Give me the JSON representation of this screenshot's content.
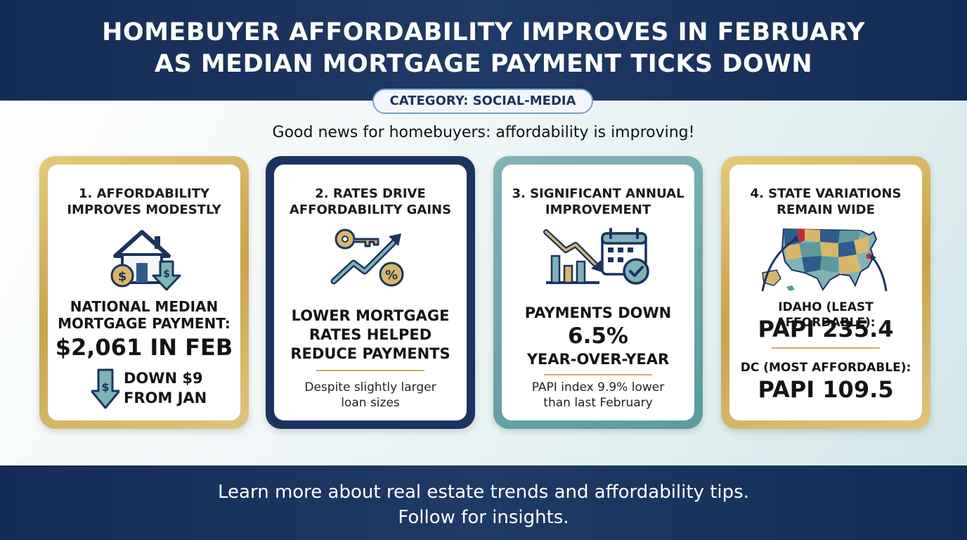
{
  "header": {
    "title_line1": "HOMEBUYER AFFORDABILITY IMPROVES IN FEBRUARY",
    "title_line2": "AS MEDIAN MORTGAGE PAYMENT TICKS DOWN"
  },
  "category": "CATEGORY: SOCIAL-MEDIA",
  "subheadline": "Good news for homebuyers: affordability is improving!",
  "cards": [
    {
      "title_line1": "1. AFFORDABILITY",
      "title_line2": "IMPROVES MODESTLY",
      "icon": "house-with-dollar-down-icon",
      "stat_line1": "NATIONAL MEDIAN",
      "stat_line2": "MORTGAGE PAYMENT:",
      "stat_value": "$2,061 IN FEB",
      "change_line1": "DOWN $9",
      "change_line2": "FROM JAN"
    },
    {
      "title_line1": "2. RATES DRIVE",
      "title_line2": "AFFORDABILITY GAINS",
      "icon": "key-percent-trend-icon",
      "stat_line1": "LOWER MORTGAGE",
      "stat_line2": "RATES HELPED",
      "stat_line3": "REDUCE PAYMENTS",
      "note_line1": "Despite slightly larger",
      "note_line2": "loan sizes"
    },
    {
      "title_line1": "3. SIGNIFICANT ANNUAL",
      "title_line2": "IMPROVEMENT",
      "icon": "chart-down-calendar-check-icon",
      "stat_line1": "PAYMENTS DOWN",
      "stat_value": "6.5%",
      "stat_line3": "YEAR-OVER-YEAR",
      "note_line1": "PAPI index 9.9% lower",
      "note_line2": "than last February"
    },
    {
      "title_line1": "4. STATE VARIATIONS",
      "title_line2": "REMAIN WIDE",
      "icon": "us-map-icon",
      "least_label": "IDAHO (LEAST AFFORDABLE):",
      "least_value": "PAPI 235.4",
      "most_label": "DC (MOST AFFORDABLE):",
      "most_value": "PAPI 109.5"
    }
  ],
  "footer": {
    "line1": "Learn more about real estate trends and affordability tips.",
    "line2": "Follow for insights."
  },
  "colors": {
    "navy": "#1a3360",
    "gold": "#c9a24e",
    "teal": "#5c9a9e",
    "dark_text": "#141414"
  }
}
